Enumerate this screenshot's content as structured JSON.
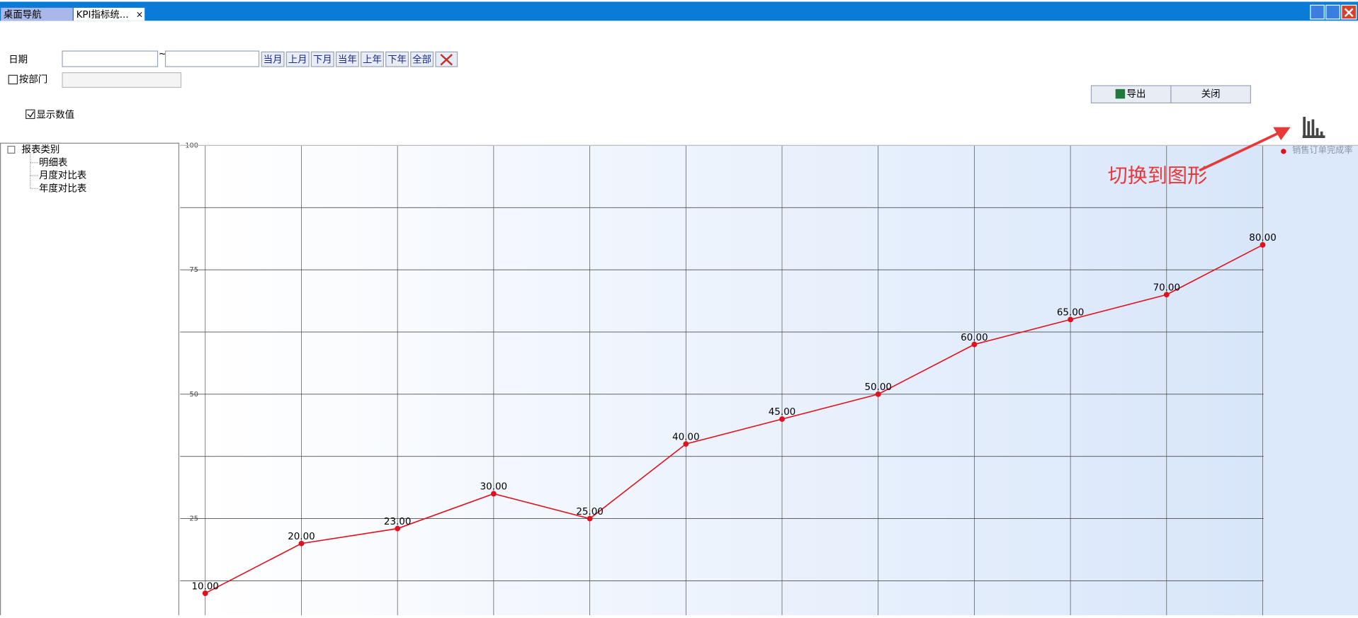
{
  "tabs": [
    "桌面导航",
    "KPI指标统..."
  ],
  "filters": {
    "date_label": "日期",
    "range_sep": "~",
    "buttons": [
      "当月",
      "上月",
      "下月",
      "当年",
      "上年",
      "下年",
      "全部"
    ],
    "by_dept": "按部门",
    "show_values": "显示数值"
  },
  "actions": [
    "导出",
    "关闭"
  ],
  "tree": {
    "root": "报表类别",
    "items": [
      "明细表",
      "月度对比表",
      "年度对比表"
    ]
  },
  "annotation": "切换到图形",
  "chart_data": {
    "type": "line",
    "categories": [
      null,
      null,
      null,
      null,
      null,
      null,
      null,
      null,
      null,
      null,
      null,
      null
    ],
    "series": [
      {
        "name": "销售订单完成率",
        "color": "#e0101c",
        "values": [
          10,
          20,
          23,
          30,
          25,
          40,
          45,
          50,
          60,
          65,
          70,
          80
        ],
        "value_labels": [
          "10.00",
          "20.00",
          "23.00",
          "30.00",
          "25.00",
          "40.00",
          "45.00",
          "50.00",
          "60.00",
          "65.00",
          "70.00",
          "80.00"
        ]
      }
    ],
    "ylim": [
      5.6,
      100
    ],
    "yticks": [
      25,
      50,
      75,
      100
    ],
    "grid": true,
    "legend": "top-right"
  }
}
